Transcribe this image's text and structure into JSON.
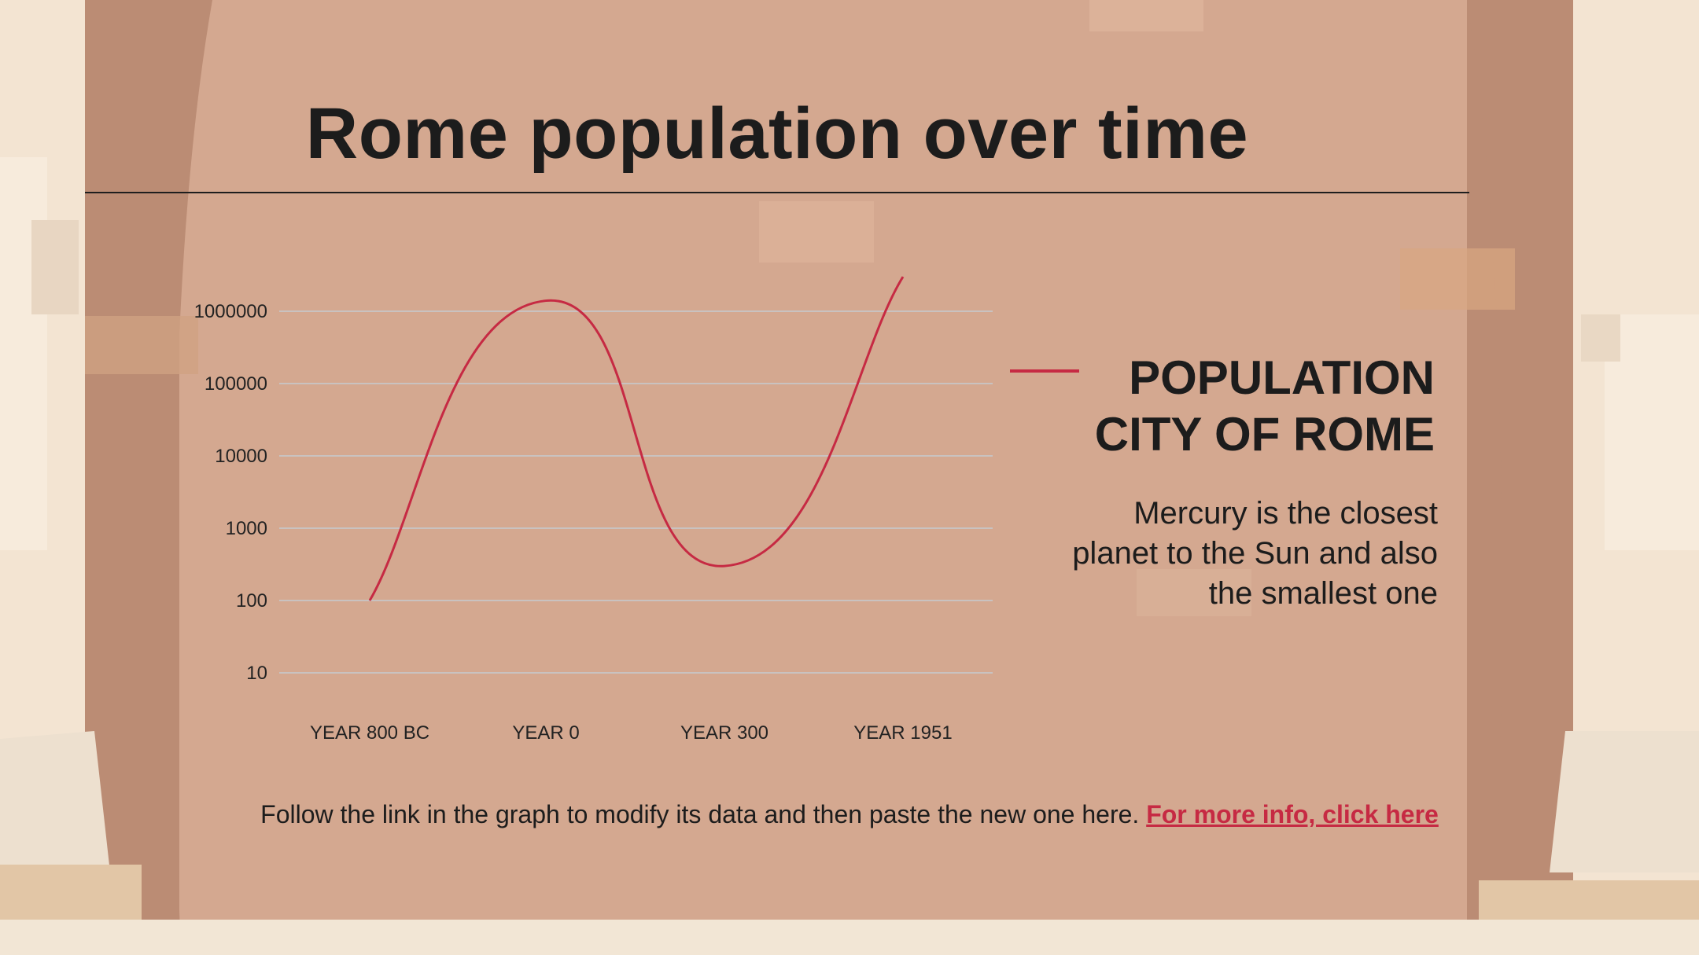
{
  "title": "Rome population over time",
  "legend": {
    "line1": "POPULATION",
    "line2": "CITY OF ROME",
    "color": "#c62a43"
  },
  "description": {
    "line1": "Mercury is the closest",
    "line2": "planet to the Sun and also",
    "line3": "the smallest one"
  },
  "footer": {
    "text": "Follow the link in the graph to modify its data and then paste the new one here.",
    "link": "For more info, click here"
  },
  "chart_data": {
    "type": "line",
    "scale": "log",
    "title": "Rome population over time",
    "categories": [
      "YEAR 800 BC",
      "YEAR 0",
      "YEAR 300",
      "YEAR 1951"
    ],
    "series": [
      {
        "name": "POPULATION CITY OF ROME",
        "values": [
          100,
          1400000,
          300,
          3000000
        ],
        "color": "#c62a43"
      }
    ],
    "y_ticks": [
      "10",
      "100",
      "1000",
      "10000",
      "100000",
      "1000000"
    ],
    "ylim": [
      10,
      1000000
    ],
    "grid": true,
    "legend_position": "right"
  }
}
